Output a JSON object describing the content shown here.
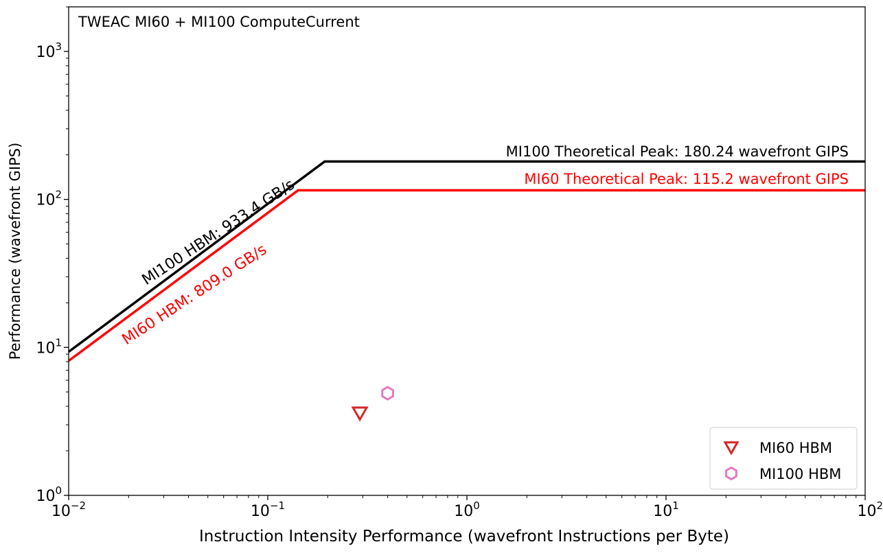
{
  "chart_data": {
    "type": "scatter",
    "title": "TWEAC MI60 + MI100 ComputeCurrent",
    "xlabel": "Instruction Intensity Performance (wavefront Instructions per Byte)",
    "ylabel": "Performance (wavefront GIPS)",
    "xscale": "log",
    "yscale": "log",
    "xlim": [
      0.01,
      100
    ],
    "ylim": [
      1,
      2000
    ],
    "x_ticks": [
      {
        "value": 0.01,
        "base": "10",
        "exp": "−2"
      },
      {
        "value": 0.1,
        "base": "10",
        "exp": "−1"
      },
      {
        "value": 1,
        "base": "10",
        "exp": "0"
      },
      {
        "value": 10,
        "base": "10",
        "exp": "1"
      },
      {
        "value": 100,
        "base": "10",
        "exp": "2"
      }
    ],
    "y_ticks": [
      {
        "value": 1,
        "base": "10",
        "exp": "0"
      },
      {
        "value": 10,
        "base": "10",
        "exp": "1"
      },
      {
        "value": 100,
        "base": "10",
        "exp": "2"
      },
      {
        "value": 1000,
        "base": "10",
        "exp": "3"
      }
    ],
    "grid": false,
    "legend_position": "bottom-right",
    "rooflines": [
      {
        "name": "MI100",
        "color": "#000000",
        "bandwidth_label": "MI100 HBM: 933.4 GB/s",
        "bandwidth": 933.4,
        "peak_label": "MI100 Theoretical Peak: 180.24 wavefront GIPS",
        "peak": 180.24,
        "ridge_x": 0.193
      },
      {
        "name": "MI60",
        "color": "#ff0000",
        "bandwidth_label": "MI60 HBM: 809.0 GB/s",
        "bandwidth": 809.0,
        "peak_label": "MI60 Theoretical Peak: 115.2 wavefront GIPS",
        "peak": 115.2,
        "ridge_x": 0.142
      }
    ],
    "series": [
      {
        "name": "MI60 HBM",
        "marker": "triangle-down-icon",
        "color": "#d62728",
        "x": [
          0.29
        ],
        "y": [
          3.6
        ]
      },
      {
        "name": "MI100 HBM",
        "marker": "hexagon-icon",
        "color": "#e377c2",
        "x": [
          0.4
        ],
        "y": [
          4.9
        ]
      }
    ]
  }
}
